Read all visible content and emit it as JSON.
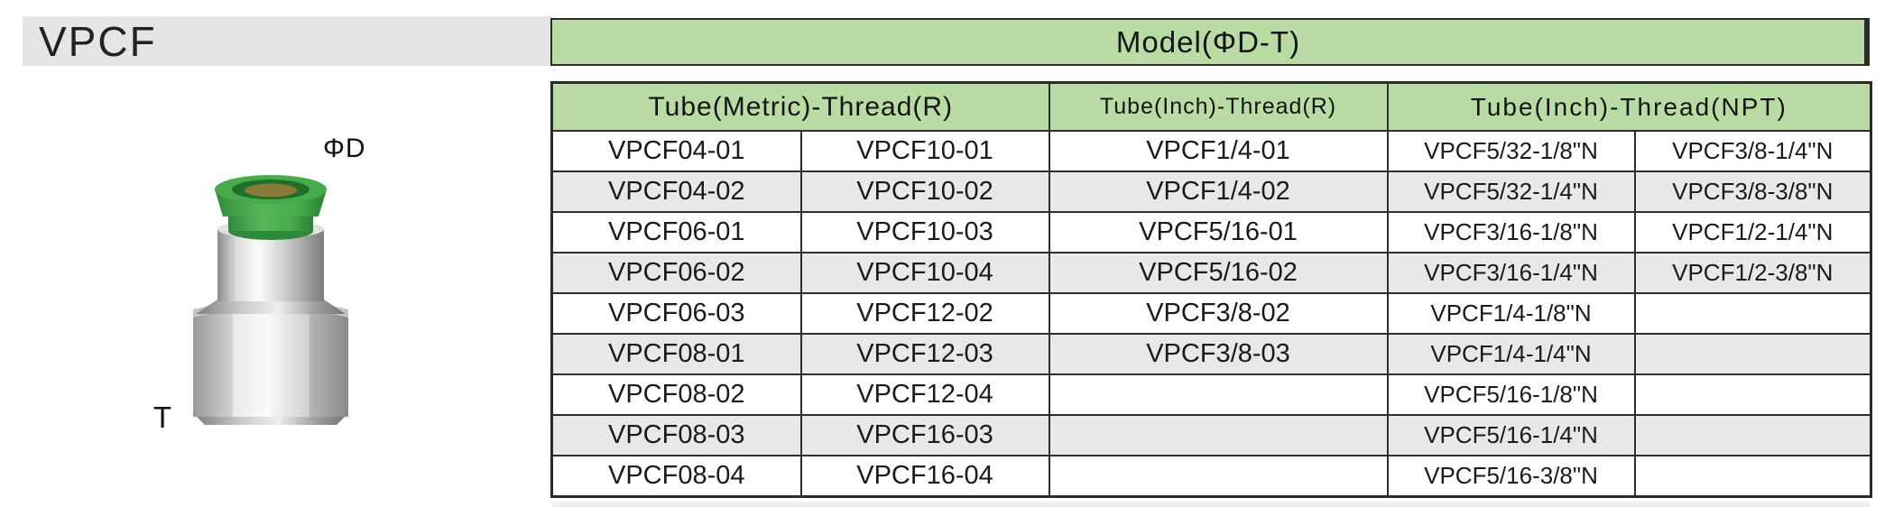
{
  "page": {
    "series_title": "VPCF",
    "model_header": "Model(ΦD-T)"
  },
  "diagram": {
    "tube_diameter_label": "ΦD",
    "thread_label": "T",
    "product": "push-to-connect female thread fitting photo"
  },
  "table": {
    "sections": [
      {
        "label": "Tube(Metric)-Thread(R)",
        "colspan": 2
      },
      {
        "label": "Tube(Inch)-Thread(R)",
        "colspan": 1
      },
      {
        "label": "Tube(Inch)-Thread(NPT)",
        "colspan": 2
      }
    ],
    "rows": [
      [
        "VPCF04-01",
        "VPCF10-01",
        "VPCF1/4-01",
        "VPCF5/32-1/8\"N",
        "VPCF3/8-1/4\"N"
      ],
      [
        "VPCF04-02",
        "VPCF10-02",
        "VPCF1/4-02",
        "VPCF5/32-1/4\"N",
        "VPCF3/8-3/8\"N"
      ],
      [
        "VPCF06-01",
        "VPCF10-03",
        "VPCF5/16-01",
        "VPCF3/16-1/8\"N",
        "VPCF1/2-1/4\"N"
      ],
      [
        "VPCF06-02",
        "VPCF10-04",
        "VPCF5/16-02",
        "VPCF3/16-1/4\"N",
        "VPCF1/2-3/8\"N"
      ],
      [
        "VPCF06-03",
        "VPCF12-02",
        "VPCF3/8-02",
        "VPCF1/4-1/8\"N",
        ""
      ],
      [
        "VPCF08-01",
        "VPCF12-03",
        "VPCF3/8-03",
        "VPCF1/4-1/4\"N",
        ""
      ],
      [
        "VPCF08-02",
        "VPCF12-04",
        "",
        "VPCF5/16-1/8\"N",
        ""
      ],
      [
        "VPCF08-03",
        "VPCF16-03",
        "",
        "VPCF5/16-1/4\"N",
        ""
      ],
      [
        "VPCF08-04",
        "VPCF16-04",
        "",
        "VPCF5/16-3/8\"N",
        ""
      ]
    ]
  },
  "colors": {
    "header_green": "#b9dba4",
    "row_alt_gray": "#e8e8e8",
    "title_bar_gray": "#e5e5e5",
    "border_dark": "#2b2b2b",
    "collet_green": "#3fa848"
  }
}
